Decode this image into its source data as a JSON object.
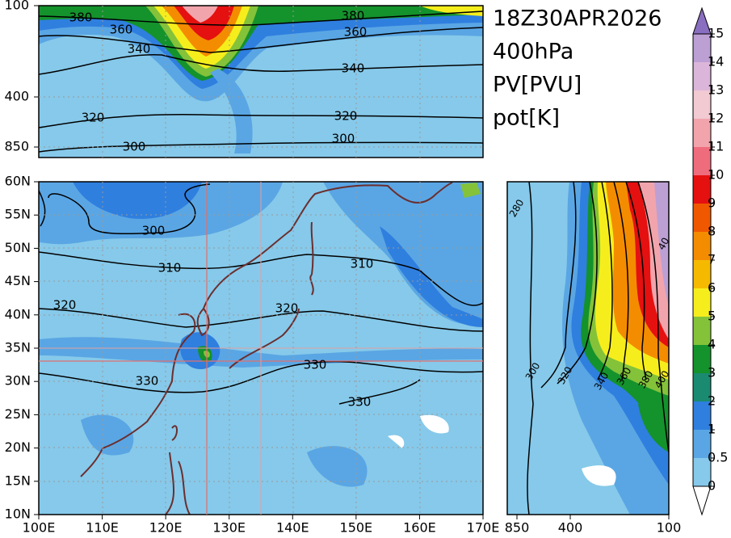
{
  "title_lines": [
    "18Z30APR2026",
    "400hPa",
    "PV[PVU]",
    "pot[K]"
  ],
  "top_panel": {
    "y_ticks": [
      "100",
      "400",
      "850"
    ],
    "contour_labels": [
      "380",
      "380",
      "360",
      "360",
      "340",
      "340",
      "320",
      "320",
      "300",
      "300"
    ]
  },
  "map": {
    "lat_ticks": [
      "60N",
      "55N",
      "50N",
      "45N",
      "40N",
      "35N",
      "30N",
      "25N",
      "20N",
      "15N",
      "10N"
    ],
    "lon_ticks": [
      "100E",
      "110E",
      "120E",
      "130E",
      "140E",
      "150E",
      "160E",
      "170E"
    ],
    "contour_labels": [
      "300",
      "310",
      "310",
      "320",
      "320",
      "330",
      "330",
      "330"
    ]
  },
  "side_panel": {
    "x_ticks": [
      "850",
      "400",
      "100"
    ],
    "contour_labels": [
      "280",
      "300",
      "320",
      "340",
      "360",
      "380",
      "400",
      "40"
    ]
  },
  "colorbar": {
    "levels": [
      0,
      0.5,
      1,
      2,
      3,
      4,
      5,
      6,
      7,
      8,
      9,
      10,
      11,
      12,
      13,
      14,
      15
    ],
    "colors": [
      "#86c9ea",
      "#5aa6e4",
      "#2f7fdf",
      "#1a8a70",
      "#14922c",
      "#84c23a",
      "#f6ee1c",
      "#f5ba00",
      "#f48c00",
      "#f05800",
      "#e51010",
      "#ef6c7c",
      "#f2a4ac",
      "#f1cad2",
      "#dcb6da",
      "#bca0d4"
    ],
    "over_color": "#8a6ec0",
    "under_color": "#ffffff"
  }
}
